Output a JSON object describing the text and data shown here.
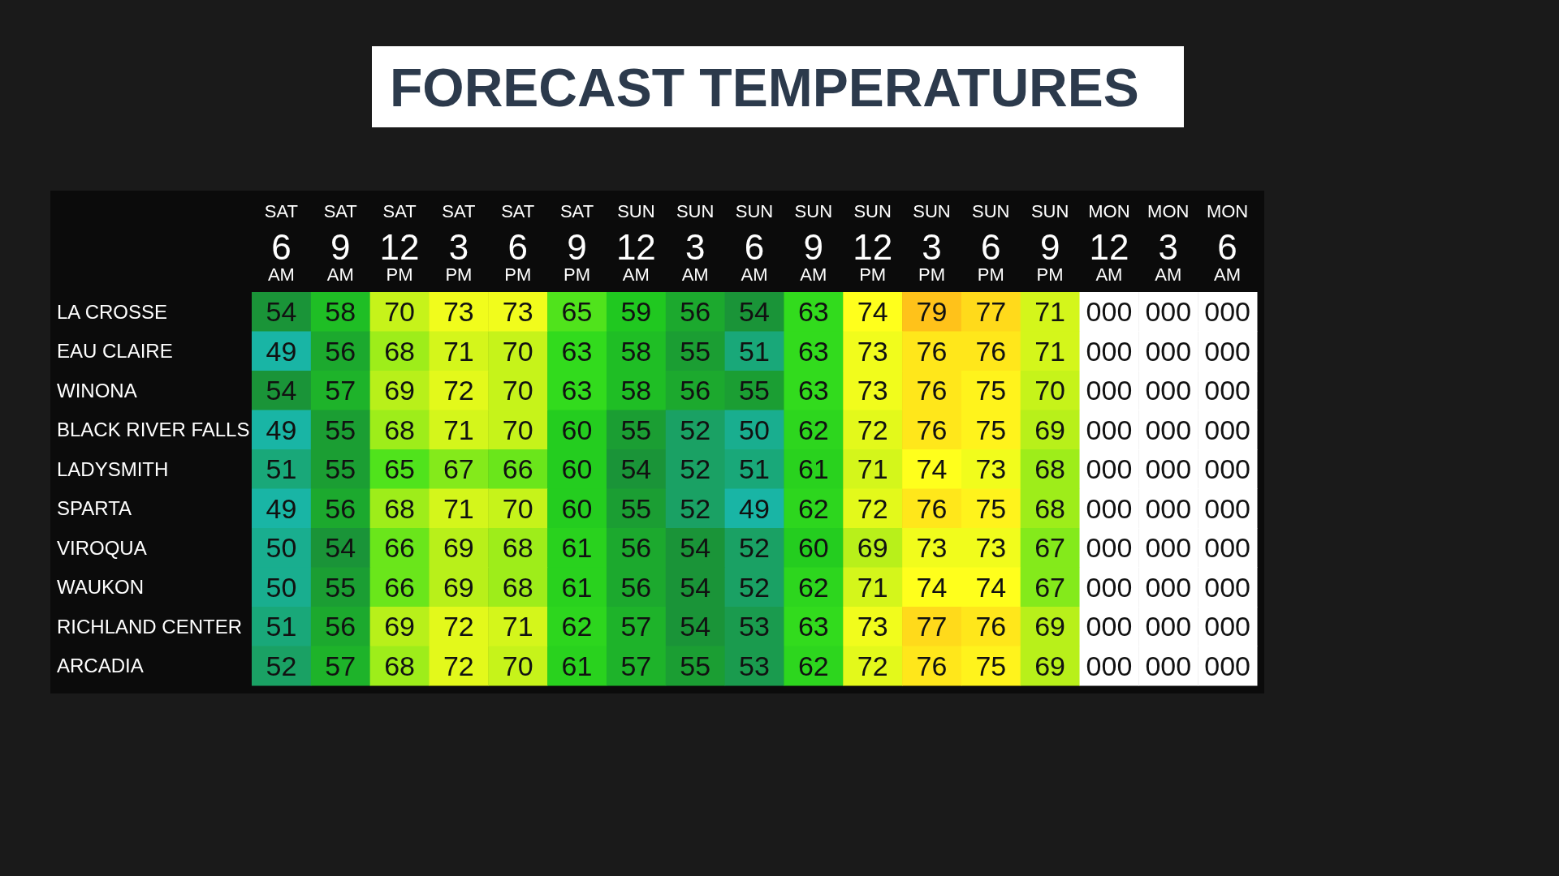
{
  "chart_data": {
    "type": "heatmap",
    "title": "FORECAST TEMPERATURES",
    "categories": [
      "SAT 6 AM",
      "SAT 9 AM",
      "SAT 12 PM",
      "SAT 3 PM",
      "SAT 6 PM",
      "SAT 9 PM",
      "SUN 12 AM",
      "SUN 3 AM",
      "SUN 6 AM",
      "SUN 9 AM",
      "SUN 12 PM",
      "SUN 3 PM",
      "SUN 6 PM",
      "SUN 9 PM",
      "MON 12 AM",
      "MON 3 AM",
      "MON 6 AM"
    ],
    "y_categories": [
      "LA CROSSE",
      "EAU CLAIRE",
      "WINONA",
      "BLACK RIVER FALLS",
      "LADYSMITH",
      "SPARTA",
      "VIROQUA",
      "WAUKON",
      "RICHLAND CENTER",
      "ARCADIA"
    ],
    "colors": [
      "#19b5a5",
      "#1a9438",
      "#20c820",
      "#36e01c",
      "#b8f01a",
      "#ffff1c",
      "#ffc21a"
    ],
    "cells": [
      [
        54,
        58,
        70,
        73,
        73,
        65,
        59,
        56,
        54,
        63,
        74,
        79,
        77,
        71,
        null,
        null,
        null
      ],
      [
        49,
        56,
        68,
        71,
        70,
        63,
        58,
        55,
        51,
        63,
        73,
        76,
        76,
        71,
        null,
        null,
        null
      ],
      [
        54,
        57,
        69,
        72,
        70,
        63,
        58,
        56,
        55,
        63,
        73,
        76,
        75,
        70,
        null,
        null,
        null
      ],
      [
        49,
        55,
        68,
        71,
        70,
        60,
        55,
        52,
        50,
        62,
        72,
        76,
        75,
        69,
        null,
        null,
        null
      ],
      [
        51,
        55,
        65,
        67,
        66,
        60,
        54,
        52,
        51,
        61,
        71,
        74,
        73,
        68,
        null,
        null,
        null
      ],
      [
        49,
        56,
        68,
        71,
        70,
        60,
        55,
        52,
        49,
        62,
        72,
        76,
        75,
        68,
        null,
        null,
        null
      ],
      [
        50,
        54,
        66,
        69,
        68,
        61,
        56,
        54,
        52,
        60,
        69,
        73,
        73,
        67,
        null,
        null,
        null
      ],
      [
        50,
        55,
        66,
        69,
        68,
        61,
        56,
        54,
        52,
        62,
        71,
        74,
        74,
        67,
        null,
        null,
        null
      ],
      [
        51,
        56,
        69,
        72,
        71,
        62,
        57,
        54,
        53,
        63,
        73,
        77,
        76,
        69,
        null,
        null,
        null
      ],
      [
        52,
        57,
        68,
        72,
        70,
        61,
        57,
        55,
        53,
        62,
        72,
        76,
        75,
        69,
        null,
        null,
        null
      ]
    ],
    "cell_labels": [
      [
        "54",
        "58",
        "70",
        "73",
        "73",
        "65",
        "59",
        "56",
        "54",
        "63",
        "74",
        "79",
        "77",
        "71",
        "000",
        "000",
        "000"
      ],
      [
        "49",
        "56",
        "68",
        "71",
        "70",
        "63",
        "58",
        "55",
        "51",
        "63",
        "73",
        "76",
        "76",
        "71",
        "000",
        "000",
        "000"
      ],
      [
        "54",
        "57",
        "69",
        "72",
        "70",
        "63",
        "58",
        "56",
        "55",
        "63",
        "73",
        "76",
        "75",
        "70",
        "000",
        "000",
        "000"
      ],
      [
        "49",
        "55",
        "68",
        "71",
        "70",
        "60",
        "55",
        "52",
        "50",
        "62",
        "72",
        "76",
        "75",
        "69",
        "000",
        "000",
        "000"
      ],
      [
        "51",
        "55",
        "65",
        "67",
        "66",
        "60",
        "54",
        "52",
        "51",
        "61",
        "71",
        "74",
        "73",
        "68",
        "000",
        "000",
        "000"
      ],
      [
        "49",
        "56",
        "68",
        "71",
        "70",
        "60",
        "55",
        "52",
        "49",
        "62",
        "72",
        "76",
        "75",
        "68",
        "000",
        "000",
        "000"
      ],
      [
        "50",
        "54",
        "66",
        "69",
        "68",
        "61",
        "56",
        "54",
        "52",
        "60",
        "69",
        "73",
        "73",
        "67",
        "000",
        "000",
        "000"
      ],
      [
        "50",
        "55",
        "66",
        "69",
        "68",
        "61",
        "56",
        "54",
        "52",
        "62",
        "71",
        "74",
        "74",
        "67",
        "000",
        "000",
        "000"
      ],
      [
        "51",
        "56",
        "69",
        "72",
        "71",
        "62",
        "57",
        "54",
        "53",
        "63",
        "73",
        "77",
        "76",
        "69",
        "000",
        "000",
        "000"
      ],
      [
        "52",
        "57",
        "68",
        "72",
        "70",
        "61",
        "57",
        "55",
        "53",
        "62",
        "72",
        "76",
        "75",
        "69",
        "000",
        "000",
        "000"
      ]
    ]
  }
}
